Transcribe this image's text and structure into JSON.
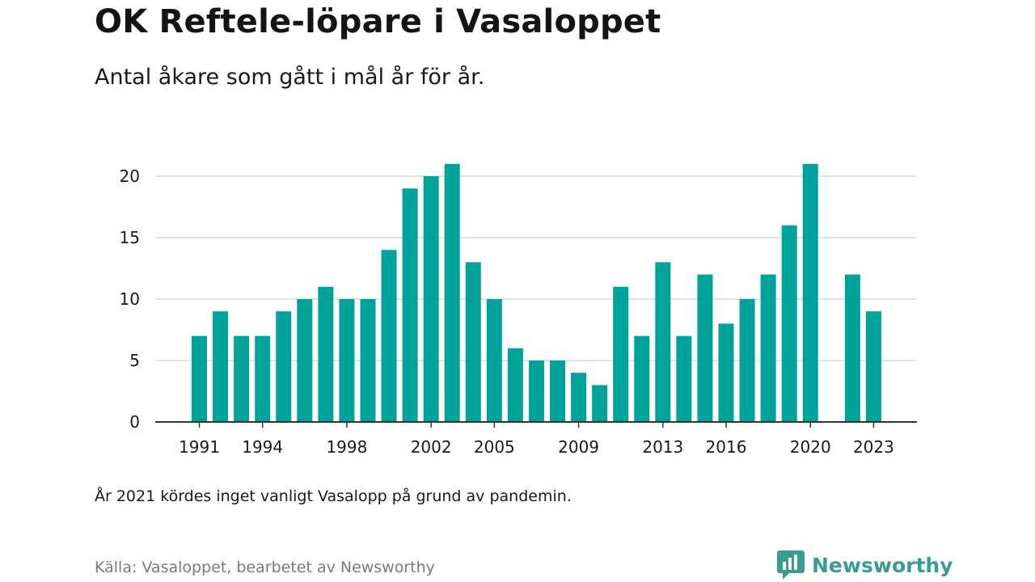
{
  "title": "OK Reftele-löpare i Vasaloppet",
  "subtitle": "Antal åkare som gått i mål år för år.",
  "note": "År 2021 kördes inget vanligt Vasalopp på grund av pandemin.",
  "source": "Källa: Vasaloppet, bearbetet av Newsworthy",
  "brand": "Newsworthy",
  "colors": {
    "bar": "#00a39a",
    "grid": "#d9d9d9",
    "axis": "#333333",
    "brand": "#3a9c8f"
  },
  "chart_data": {
    "type": "bar",
    "x": [
      1991,
      1992,
      1993,
      1994,
      1995,
      1996,
      1997,
      1998,
      1999,
      2000,
      2001,
      2002,
      2003,
      2004,
      2005,
      2006,
      2007,
      2008,
      2009,
      2010,
      2011,
      2012,
      2013,
      2014,
      2015,
      2016,
      2017,
      2018,
      2019,
      2020,
      2021,
      2022,
      2023
    ],
    "values": [
      7,
      9,
      7,
      7,
      9,
      10,
      11,
      10,
      10,
      14,
      19,
      20,
      21,
      13,
      10,
      6,
      5,
      5,
      4,
      3,
      11,
      7,
      13,
      7,
      12,
      8,
      10,
      12,
      16,
      21,
      null,
      12,
      9
    ],
    "xtick_labels": [
      "1991",
      "1994",
      "1998",
      "2002",
      "2005",
      "2009",
      "2013",
      "2016",
      "2020",
      "2023"
    ],
    "ytick_labels": [
      "0",
      "5",
      "10",
      "15",
      "20"
    ],
    "ylim": [
      0,
      21
    ],
    "grid": true
  }
}
